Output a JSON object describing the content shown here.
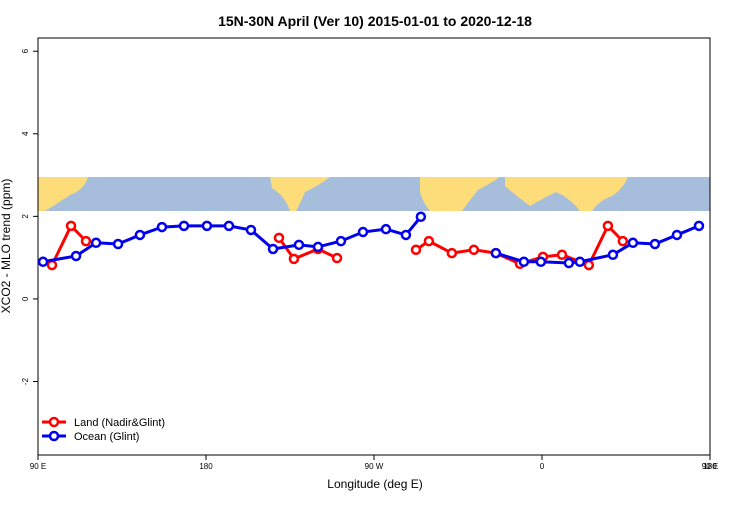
{
  "chart_data": {
    "type": "line",
    "title": "15N-30N April (Ver 10)   2015-01-01 to 2020-12-18",
    "x_label": "Longitude (deg E)",
    "y_label": "XCO2 - MLO trend (ppm)",
    "xlim": [
      90,
      450
    ],
    "xticks": [
      {
        "value": 90,
        "label": "90 E"
      },
      {
        "value": 180,
        "label": "180"
      },
      {
        "value": 270,
        "label": "90 W"
      },
      {
        "value": 360,
        "label": "0"
      },
      {
        "value": 450,
        "label": "90 E"
      }
    ],
    "xticks_extra": [
      {
        "value": 450,
        "label": "180"
      }
    ],
    "ylim": [
      -3.78,
      6.32
    ],
    "yticks": [
      -2,
      0,
      2,
      4,
      6
    ],
    "legend": "bottom-left",
    "series": [
      {
        "name": "Land (Nadir&Glint)",
        "color": "#ff0000",
        "x": [
          97.5,
          107.7,
          115.7,
          null,
          219.1,
          227.1,
          240.0,
          250.2,
          null,
          292.5,
          299.4,
          311.7,
          323.5,
          335.3,
          348.2,
          360.5,
          370.7,
          385.1,
          395.3,
          403.3
        ],
        "values": [
          0.82,
          1.77,
          1.4,
          null,
          1.48,
          0.97,
          1.21,
          0.99,
          null,
          1.19,
          1.4,
          1.11,
          1.19,
          1.11,
          0.85,
          1.02,
          1.07,
          0.82,
          1.77,
          1.4
        ]
      },
      {
        "name": "Ocean (Glint)",
        "color": "#0000ee",
        "x": [
          92.7,
          110.4,
          121.1,
          132.9,
          144.6,
          156.4,
          168.2,
          180.5,
          192.3,
          204.1,
          215.9,
          229.8,
          240.0,
          252.3,
          264.1,
          276.4,
          287.1,
          295.1,
          null,
          335.3,
          350.3,
          359.4,
          374.4,
          380.3,
          398.0,
          408.7,
          420.5,
          432.3,
          444.1
        ],
        "values": [
          0.9,
          1.04,
          1.36,
          1.33,
          1.55,
          1.74,
          1.77,
          1.77,
          1.77,
          1.67,
          1.21,
          1.31,
          1.26,
          1.4,
          1.62,
          1.69,
          1.55,
          1.99,
          null,
          1.11,
          0.9,
          0.9,
          0.87,
          0.9,
          1.07,
          1.36,
          1.33,
          1.55,
          1.77
        ]
      }
    ]
  }
}
